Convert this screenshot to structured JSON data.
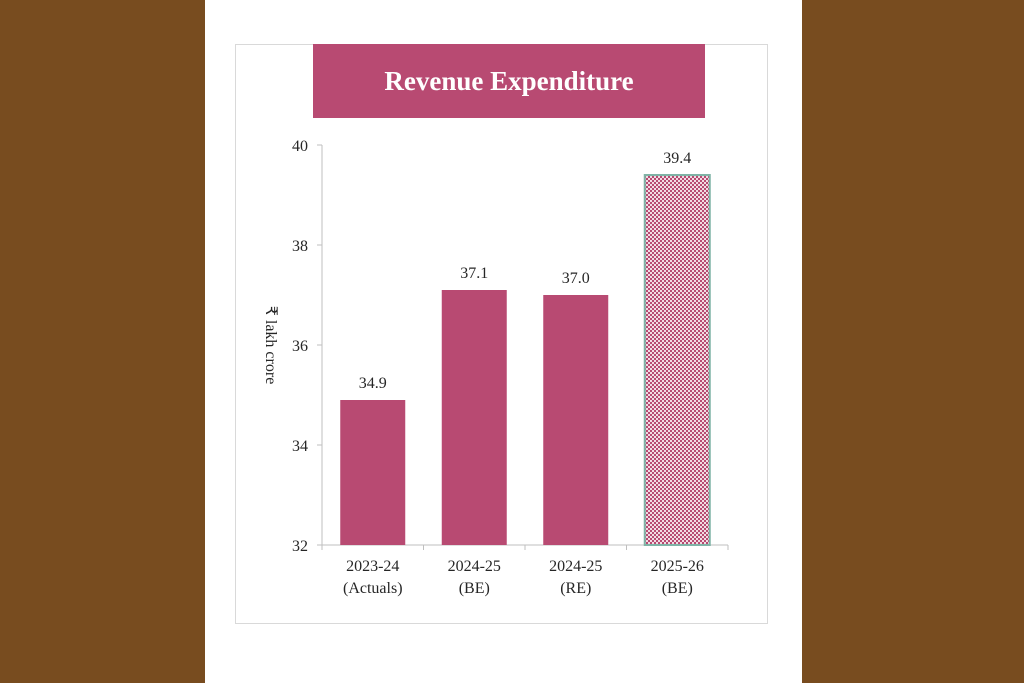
{
  "chart_data": {
    "type": "bar",
    "title": "Revenue Expenditure",
    "ylabel": "₹ lakh crore",
    "xlabel": "",
    "ylim": [
      32,
      40
    ],
    "yticks": [
      32,
      34,
      36,
      38,
      40
    ],
    "categories": [
      [
        "2023-24",
        "(Actuals)"
      ],
      [
        "2024-25",
        "(BE)"
      ],
      [
        "2024-25",
        "(RE)"
      ],
      [
        "2025-26",
        "(BE)"
      ]
    ],
    "values": [
      34.9,
      37.1,
      37.0,
      39.4
    ],
    "value_labels": [
      "34.9",
      "37.1",
      "37.0",
      "39.4"
    ],
    "bar_style": [
      "solid",
      "solid",
      "solid",
      "checkered"
    ],
    "grid": false,
    "legend": "none"
  },
  "colors": {
    "page_background": "#784c1f",
    "bar": "#b84a72",
    "bar_checkered_light": "#f2dbe3",
    "bar_checkered_outline": "#7fb3a6",
    "axis": "#bfbfbf",
    "banner": "#b84a72",
    "banner_text": "#ffffff"
  }
}
